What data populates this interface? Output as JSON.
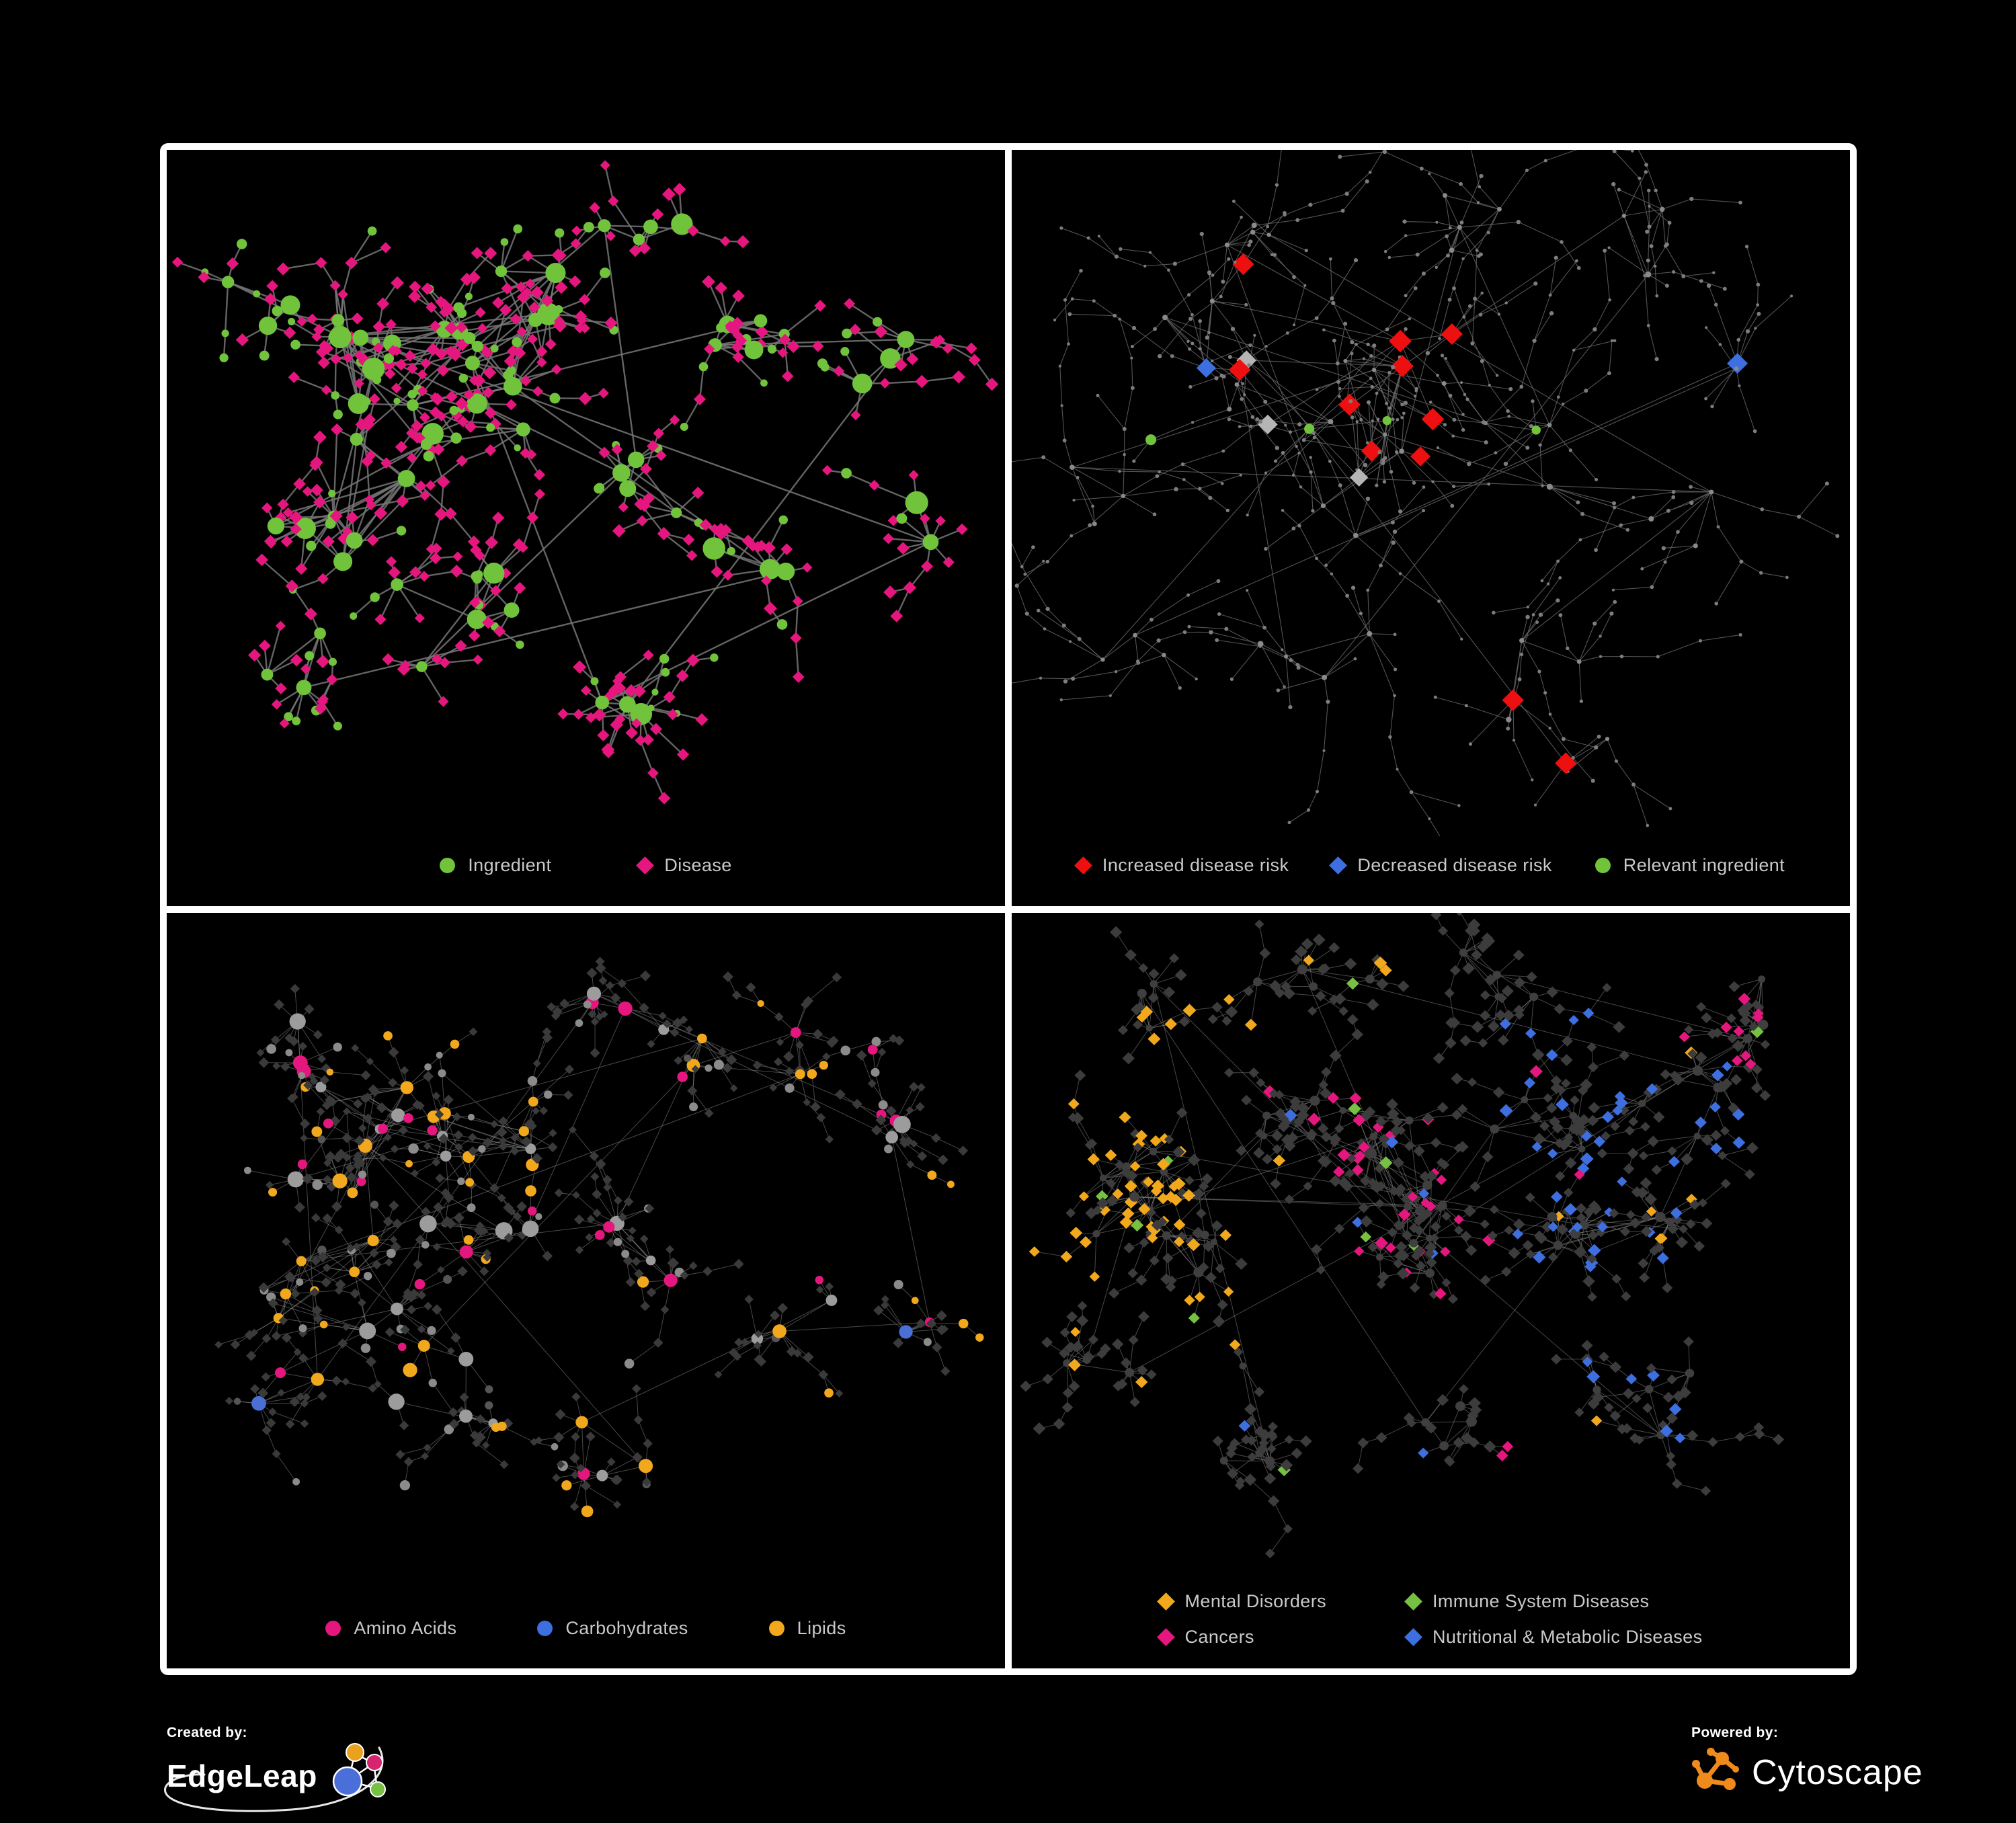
{
  "background": "#000000",
  "frame_color": "#ffffff",
  "legend_text_color": "#c9c9c9",
  "panels": [
    {
      "name": "ingredient-disease-network",
      "legend": {
        "layout": "row",
        "items": [
          {
            "shape": "circle",
            "color": "#72c33c",
            "label": "Ingredient"
          },
          {
            "shape": "diamond",
            "color": "#e5177e",
            "label": "Disease"
          }
        ]
      },
      "net": {
        "seed": 13,
        "edge": {
          "c": "#767676",
          "w": 2.4,
          "o": 0.85
        },
        "leafDist": [
          26,
          60
        ],
        "leafN": [
          2,
          8
        ],
        "chain": 0.3,
        "maxDepth": 2,
        "branch": 0.15,
        "accentShare": 0,
        "hubAccentShare": 0,
        "hubTypes": [
          {
            "s": "c",
            "c": "#72c33c",
            "w": 1,
            "r": [
              8,
              17
            ]
          }
        ],
        "leafTypes": [
          {
            "s": "d",
            "c": "#e5177e",
            "w": 0.78,
            "r": [
              6,
              8
            ]
          },
          {
            "s": "c",
            "c": "#72c33c",
            "w": 0.22,
            "r": [
              5,
              8
            ]
          }
        ],
        "accentPalettes": [
          []
        ],
        "clusters": [
          [
            0.26,
            0.3,
            10,
            0.11,
            0,
            0
          ],
          [
            0.21,
            0.5,
            7,
            0.1,
            0,
            0
          ],
          [
            0.42,
            0.26,
            8,
            0.09,
            0,
            0
          ],
          [
            0.36,
            0.45,
            5,
            0.08,
            0,
            0
          ],
          [
            0.56,
            0.13,
            4,
            0.07,
            0,
            0
          ],
          [
            0.7,
            0.22,
            5,
            0.08,
            0,
            0
          ],
          [
            0.84,
            0.3,
            3,
            0.05,
            0,
            0
          ],
          [
            0.56,
            0.48,
            4,
            0.07,
            0,
            0
          ],
          [
            0.7,
            0.6,
            3,
            0.06,
            0,
            0
          ],
          [
            0.34,
            0.68,
            5,
            0.08,
            0,
            0
          ],
          [
            0.54,
            0.8,
            4,
            0.07,
            0,
            0
          ],
          [
            0.15,
            0.73,
            3,
            0.06,
            0,
            0
          ],
          [
            0.12,
            0.2,
            3,
            0.06,
            0,
            0
          ],
          [
            0.88,
            0.55,
            2,
            0.04,
            0,
            0
          ]
        ]
      }
    },
    {
      "name": "disease-risk-network",
      "legend": {
        "layout": "row",
        "items": [
          {
            "shape": "diamond",
            "color": "#ee1010",
            "label": "Increased disease risk"
          },
          {
            "shape": "diamond",
            "color": "#3e6fe1",
            "label": "Decreased disease risk"
          },
          {
            "shape": "circle",
            "color": "#72c33c",
            "label": "Relevant ingredient"
          }
        ]
      },
      "net": {
        "seed": 29,
        "edge": {
          "c": "#686868",
          "w": 1.1,
          "o": 0.8
        },
        "leafDist": [
          30,
          75
        ],
        "leafN": [
          2,
          6
        ],
        "chain": 0.55,
        "maxDepth": 4,
        "branch": 0.3,
        "accentShare": 0.03,
        "hubAccentShare": 0.5,
        "hubTypes": [
          {
            "s": "c",
            "c": "#8a8a8a",
            "w": 1,
            "r": [
              3,
              4.5
            ]
          }
        ],
        "leafTypes": [
          {
            "s": "c",
            "c": "#7d7d7d",
            "w": 1,
            "r": [
              2,
              3.2
            ]
          }
        ],
        "accentPalettes": [
          [
            {
              "s": "d",
              "c": "#ee1010",
              "w": 0.45,
              "r": [
                11,
                15
              ]
            },
            {
              "s": "c",
              "c": "#72c33c",
              "w": 0.35,
              "r": [
                6,
                8
              ]
            },
            {
              "s": "d",
              "c": "#b5b5b5",
              "w": 0.2,
              "r": [
                10,
                13
              ]
            }
          ],
          [
            {
              "s": "d",
              "c": "#3e6fe1",
              "w": 0.8,
              "r": [
                11,
                14
              ]
            },
            {
              "s": "d",
              "c": "#ee1010",
              "w": 0.2,
              "r": [
                11,
                14
              ]
            }
          ],
          [
            {
              "s": "d",
              "c": "#ee1010",
              "w": 0.85,
              "r": [
                11,
                15
              ]
            },
            {
              "s": "c",
              "c": "#72c33c",
              "w": 0.15,
              "r": [
                6,
                7
              ]
            }
          ]
        ],
        "clusters": [
          [
            0.42,
            0.4,
            6,
            0.1,
            1,
            0
          ],
          [
            0.32,
            0.38,
            5,
            0.09,
            1,
            0
          ],
          [
            0.52,
            0.34,
            5,
            0.09,
            1,
            2
          ],
          [
            0.45,
            0.52,
            4,
            0.08,
            0.8,
            0
          ],
          [
            0.25,
            0.28,
            4,
            0.08,
            0.6,
            1
          ],
          [
            0.6,
            0.45,
            4,
            0.08,
            0.6,
            2
          ],
          [
            0.3,
            0.12,
            4,
            0.08,
            0.1,
            0
          ],
          [
            0.55,
            0.1,
            4,
            0.07,
            0.1,
            0
          ],
          [
            0.75,
            0.15,
            3,
            0.07,
            0.1,
            0
          ],
          [
            0.88,
            0.33,
            2,
            0.05,
            1,
            1
          ],
          [
            0.8,
            0.55,
            3,
            0.07,
            0.2,
            2
          ],
          [
            0.62,
            0.78,
            4,
            0.07,
            0.5,
            2
          ],
          [
            0.35,
            0.7,
            4,
            0.08,
            0.15,
            0
          ],
          [
            0.12,
            0.5,
            3,
            0.07,
            0.3,
            0
          ],
          [
            0.15,
            0.75,
            3,
            0.06,
            0.1,
            0
          ],
          [
            0.7,
            0.88,
            2,
            0.05,
            0.3,
            2
          ]
        ]
      }
    },
    {
      "name": "nutrient-class-network",
      "legend": {
        "layout": "row",
        "items": [
          {
            "shape": "circle",
            "color": "#e5177e",
            "label": "Amino Acids"
          },
          {
            "shape": "circle",
            "color": "#3e6fe1",
            "label": "Carbohydrates"
          },
          {
            "shape": "circle",
            "color": "#f2a81d",
            "label": "Lipids"
          }
        ]
      },
      "net": {
        "seed": 41,
        "edge": {
          "c": "#a0a0a0",
          "w": 1,
          "o": 0.45
        },
        "leafDist": [
          24,
          55
        ],
        "leafN": [
          2,
          9
        ],
        "chain": 0.3,
        "maxDepth": 2,
        "branch": 0.2,
        "accentShare": 0.05,
        "hubAccentShare": 0.5,
        "hubTypes": [
          {
            "s": "c",
            "c": "#9c9c9c",
            "w": 0.5,
            "r": [
              7,
              13
            ]
          },
          {
            "s": "c",
            "c": "#f2a81d",
            "w": 0.27,
            "r": [
              7,
              12
            ]
          },
          {
            "s": "c",
            "c": "#e5177e",
            "w": 0.12,
            "r": [
              7,
              11
            ]
          },
          {
            "s": "c",
            "c": "#4a70d6",
            "w": 0.11,
            "r": [
              7,
              11
            ]
          }
        ],
        "leafTypes": [
          {
            "s": "d",
            "c": "#3a3a3a",
            "w": 0.8,
            "r": [
              4.5,
              6.5
            ]
          },
          {
            "s": "c",
            "c": "#8b8b8b",
            "w": 0.1,
            "r": [
              5,
              8
            ]
          },
          {
            "s": "c",
            "c": "#f2a81d",
            "w": 0.05,
            "r": [
              5,
              8
            ]
          },
          {
            "s": "c",
            "c": "#e5177e",
            "w": 0.03,
            "r": [
              6,
              8
            ]
          },
          {
            "s": "c",
            "c": "#555555",
            "w": 0.02,
            "r": [
              5,
              7
            ]
          }
        ],
        "accentPalettes": [
          [],
          [
            {
              "s": "c",
              "c": "#f2a81d",
              "w": 1,
              "r": [
                7,
                11
              ]
            }
          ]
        ],
        "clusters": [
          [
            0.24,
            0.32,
            9,
            0.11,
            0,
            0
          ],
          [
            0.2,
            0.52,
            7,
            0.1,
            0,
            0
          ],
          [
            0.4,
            0.3,
            7,
            0.09,
            1,
            1
          ],
          [
            0.36,
            0.46,
            5,
            0.08,
            0.3,
            1
          ],
          [
            0.55,
            0.12,
            4,
            0.07,
            0,
            0
          ],
          [
            0.7,
            0.22,
            4,
            0.08,
            0.2,
            1
          ],
          [
            0.84,
            0.3,
            3,
            0.05,
            0,
            0
          ],
          [
            0.56,
            0.5,
            4,
            0.07,
            0.3,
            1
          ],
          [
            0.34,
            0.68,
            5,
            0.08,
            0.2,
            1
          ],
          [
            0.55,
            0.78,
            4,
            0.07,
            0.4,
            1
          ],
          [
            0.15,
            0.72,
            3,
            0.06,
            0,
            0
          ],
          [
            0.12,
            0.2,
            3,
            0.06,
            0,
            0
          ],
          [
            0.75,
            0.6,
            3,
            0.06,
            0.2,
            1
          ],
          [
            0.88,
            0.6,
            2,
            0.04,
            0,
            0
          ]
        ]
      }
    },
    {
      "name": "disease-class-network",
      "legend": {
        "layout": "grid2",
        "items": [
          {
            "shape": "diamond",
            "color": "#f2a81d",
            "label": "Mental Disorders"
          },
          {
            "shape": "diamond",
            "color": "#76c043",
            "label": "Immune System Diseases"
          },
          {
            "shape": "diamond",
            "color": "#e5177e",
            "label": "Cancers"
          },
          {
            "shape": "diamond",
            "color": "#3e6fe1",
            "label": "Nutritional & Metabolic Diseases"
          }
        ]
      },
      "net": {
        "seed": 57,
        "edge": {
          "c": "#909090",
          "w": 1,
          "o": 0.5
        },
        "leafDist": [
          22,
          50
        ],
        "leafN": [
          3,
          9
        ],
        "chain": 0.35,
        "maxDepth": 3,
        "branch": 0.25,
        "accentShare": 0.5,
        "hubAccentShare": 0,
        "hubTypes": [
          {
            "s": "c",
            "c": "#3f3f3f",
            "w": 1,
            "r": [
              5,
              8
            ]
          }
        ],
        "leafTypes": [
          {
            "s": "d",
            "c": "#3c3c3c",
            "w": 1,
            "r": [
              5.5,
              7.5
            ]
          }
        ],
        "accentPalettes": [
          [
            {
              "s": "d",
              "c": "#f2a81d",
              "w": 0.25,
              "r": [
                6,
                8
              ]
            },
            {
              "s": "d",
              "c": "#e5177e",
              "w": 0.3,
              "r": [
                6,
                8
              ]
            },
            {
              "s": "d",
              "c": "#3e6fe1",
              "w": 0.3,
              "r": [
                6,
                8
              ]
            },
            {
              "s": "d",
              "c": "#76c043",
              "w": 0.15,
              "r": [
                6,
                8
              ]
            }
          ],
          [
            {
              "s": "d",
              "c": "#f2a81d",
              "w": 0.92,
              "r": [
                6,
                8
              ]
            },
            {
              "s": "d",
              "c": "#76c043",
              "w": 0.08,
              "r": [
                6,
                8
              ]
            }
          ],
          [
            {
              "s": "d",
              "c": "#e5177e",
              "w": 0.75,
              "r": [
                6,
                8
              ]
            },
            {
              "s": "d",
              "c": "#3e6fe1",
              "w": 0.15,
              "r": [
                6,
                8
              ]
            },
            {
              "s": "d",
              "c": "#76c043",
              "w": 0.1,
              "r": [
                6,
                8
              ]
            }
          ],
          [
            {
              "s": "d",
              "c": "#3e6fe1",
              "w": 0.85,
              "r": [
                6,
                8
              ]
            },
            {
              "s": "d",
              "c": "#e5177e",
              "w": 0.08,
              "r": [
                6,
                8
              ]
            },
            {
              "s": "d",
              "c": "#f2a81d",
              "w": 0.07,
              "r": [
                6,
                8
              ]
            }
          ]
        ],
        "clusters": [
          [
            0.14,
            0.42,
            7,
            0.09,
            1,
            1
          ],
          [
            0.21,
            0.53,
            4,
            0.06,
            0.9,
            1
          ],
          [
            0.42,
            0.38,
            8,
            0.1,
            0.8,
            2
          ],
          [
            0.5,
            0.5,
            5,
            0.08,
            0.7,
            2
          ],
          [
            0.33,
            0.27,
            4,
            0.07,
            0.5,
            0
          ],
          [
            0.62,
            0.35,
            4,
            0.07,
            0.6,
            3
          ],
          [
            0.72,
            0.46,
            6,
            0.09,
            0.8,
            3
          ],
          [
            0.82,
            0.28,
            4,
            0.07,
            0.9,
            3
          ],
          [
            0.88,
            0.14,
            3,
            0.05,
            0.9,
            2
          ],
          [
            0.35,
            0.1,
            4,
            0.08,
            0.5,
            1
          ],
          [
            0.58,
            0.1,
            4,
            0.07,
            0.5,
            3
          ],
          [
            0.13,
            0.14,
            3,
            0.06,
            0.6,
            1
          ],
          [
            0.3,
            0.75,
            4,
            0.08,
            0.4,
            0
          ],
          [
            0.55,
            0.8,
            4,
            0.07,
            0.4,
            2
          ],
          [
            0.75,
            0.72,
            4,
            0.07,
            0.5,
            3
          ],
          [
            0.1,
            0.68,
            3,
            0.06,
            0.3,
            1
          ]
        ]
      }
    }
  ],
  "footer": {
    "created_by_label": "Created by:",
    "edgeleap_name": "EdgeLeap",
    "powered_by_label": "Powered by:",
    "cytoscape_name": "Cytoscape",
    "edgeleap_colors": {
      "blue": "#4a6fd8",
      "gold": "#eaa21e",
      "pink": "#d6246e",
      "green": "#76c043"
    },
    "cytoscape_orange": "#ef8a1d"
  }
}
